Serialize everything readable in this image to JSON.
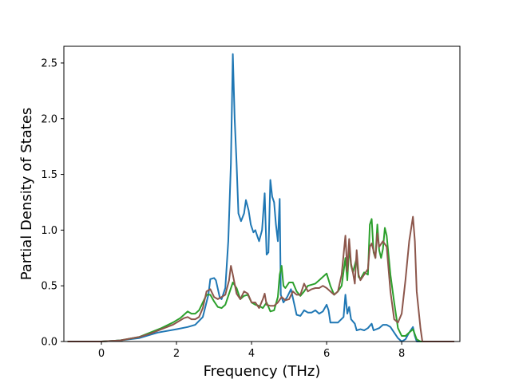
{
  "chart_data": {
    "type": "line",
    "title": "",
    "xlabel": "Frequency (THz)",
    "ylabel": "Partial Density of States",
    "xlim": [
      -1.0,
      9.55
    ],
    "ylim": [
      0.0,
      2.65
    ],
    "xticks": [
      0,
      2,
      4,
      6,
      8
    ],
    "xtick_labels": [
      "0",
      "2",
      "4",
      "6",
      "8"
    ],
    "yticks": [
      0.0,
      0.5,
      1.0,
      1.5,
      2.0,
      2.5
    ],
    "ytick_labels": [
      "0.0",
      "0.5",
      "1.0",
      "1.5",
      "2.0",
      "2.5"
    ],
    "grid": false,
    "legend": "none",
    "series": [
      {
        "color": "#1f77b4",
        "points": [
          [
            -0.9,
            0.0
          ],
          [
            0,
            0.0
          ],
          [
            0.5,
            0.01
          ],
          [
            1.0,
            0.03
          ],
          [
            1.5,
            0.08
          ],
          [
            2.0,
            0.11
          ],
          [
            2.3,
            0.13
          ],
          [
            2.5,
            0.15
          ],
          [
            2.7,
            0.22
          ],
          [
            2.85,
            0.42
          ],
          [
            2.9,
            0.56
          ],
          [
            3.0,
            0.57
          ],
          [
            3.05,
            0.55
          ],
          [
            3.15,
            0.4
          ],
          [
            3.2,
            0.38
          ],
          [
            3.3,
            0.48
          ],
          [
            3.38,
            0.9
          ],
          [
            3.45,
            1.6
          ],
          [
            3.5,
            2.58
          ],
          [
            3.55,
            2.0
          ],
          [
            3.6,
            1.6
          ],
          [
            3.65,
            1.15
          ],
          [
            3.72,
            1.08
          ],
          [
            3.8,
            1.15
          ],
          [
            3.85,
            1.27
          ],
          [
            3.92,
            1.18
          ],
          [
            3.98,
            1.05
          ],
          [
            4.05,
            0.98
          ],
          [
            4.1,
            1.0
          ],
          [
            4.15,
            0.95
          ],
          [
            4.2,
            0.9
          ],
          [
            4.28,
            1.0
          ],
          [
            4.35,
            1.33
          ],
          [
            4.4,
            0.78
          ],
          [
            4.45,
            0.8
          ],
          [
            4.5,
            1.45
          ],
          [
            4.55,
            1.3
          ],
          [
            4.6,
            1.25
          ],
          [
            4.65,
            1.05
          ],
          [
            4.7,
            0.9
          ],
          [
            4.75,
            1.28
          ],
          [
            4.78,
            0.42
          ],
          [
            4.85,
            0.35
          ],
          [
            4.95,
            0.4
          ],
          [
            5.05,
            0.47
          ],
          [
            5.2,
            0.24
          ],
          [
            5.3,
            0.23
          ],
          [
            5.4,
            0.28
          ],
          [
            5.5,
            0.26
          ],
          [
            5.6,
            0.26
          ],
          [
            5.7,
            0.28
          ],
          [
            5.8,
            0.25
          ],
          [
            5.9,
            0.27
          ],
          [
            6.0,
            0.33
          ],
          [
            6.05,
            0.28
          ],
          [
            6.1,
            0.17
          ],
          [
            6.3,
            0.17
          ],
          [
            6.45,
            0.22
          ],
          [
            6.5,
            0.42
          ],
          [
            6.55,
            0.25
          ],
          [
            6.6,
            0.31
          ],
          [
            6.65,
            0.2
          ],
          [
            6.75,
            0.16
          ],
          [
            6.8,
            0.1
          ],
          [
            6.9,
            0.11
          ],
          [
            7.0,
            0.1
          ],
          [
            7.1,
            0.12
          ],
          [
            7.2,
            0.16
          ],
          [
            7.25,
            0.1
          ],
          [
            7.4,
            0.12
          ],
          [
            7.5,
            0.15
          ],
          [
            7.6,
            0.15
          ],
          [
            7.7,
            0.13
          ],
          [
            7.8,
            0.08
          ],
          [
            7.9,
            0.03
          ],
          [
            8.0,
            0.0
          ],
          [
            8.1,
            0.02
          ],
          [
            8.2,
            0.08
          ],
          [
            8.3,
            0.13
          ],
          [
            8.35,
            0.05
          ],
          [
            8.4,
            0.0
          ],
          [
            9.4,
            0.0
          ]
        ]
      },
      {
        "color": "#2ca02c",
        "points": [
          [
            -0.9,
            0.0
          ],
          [
            0,
            0.0
          ],
          [
            0.5,
            0.01
          ],
          [
            1.0,
            0.04
          ],
          [
            1.3,
            0.08
          ],
          [
            1.6,
            0.12
          ],
          [
            1.9,
            0.17
          ],
          [
            2.1,
            0.21
          ],
          [
            2.2,
            0.24
          ],
          [
            2.3,
            0.27
          ],
          [
            2.4,
            0.25
          ],
          [
            2.5,
            0.25
          ],
          [
            2.6,
            0.28
          ],
          [
            2.7,
            0.35
          ],
          [
            2.8,
            0.42
          ],
          [
            2.9,
            0.42
          ],
          [
            3.0,
            0.36
          ],
          [
            3.1,
            0.31
          ],
          [
            3.2,
            0.3
          ],
          [
            3.3,
            0.33
          ],
          [
            3.4,
            0.43
          ],
          [
            3.5,
            0.53
          ],
          [
            3.6,
            0.48
          ],
          [
            3.7,
            0.38
          ],
          [
            3.8,
            0.41
          ],
          [
            3.9,
            0.42
          ],
          [
            4.0,
            0.35
          ],
          [
            4.1,
            0.33
          ],
          [
            4.2,
            0.32
          ],
          [
            4.3,
            0.3
          ],
          [
            4.4,
            0.35
          ],
          [
            4.5,
            0.27
          ],
          [
            4.6,
            0.28
          ],
          [
            4.7,
            0.4
          ],
          [
            4.75,
            0.6
          ],
          [
            4.8,
            0.68
          ],
          [
            4.85,
            0.5
          ],
          [
            4.9,
            0.48
          ],
          [
            5.0,
            0.53
          ],
          [
            5.1,
            0.53
          ],
          [
            5.2,
            0.45
          ],
          [
            5.3,
            0.41
          ],
          [
            5.4,
            0.45
          ],
          [
            5.5,
            0.5
          ],
          [
            5.6,
            0.51
          ],
          [
            5.7,
            0.52
          ],
          [
            5.8,
            0.55
          ],
          [
            5.9,
            0.58
          ],
          [
            6.0,
            0.61
          ],
          [
            6.1,
            0.5
          ],
          [
            6.2,
            0.42
          ],
          [
            6.3,
            0.45
          ],
          [
            6.4,
            0.5
          ],
          [
            6.5,
            0.75
          ],
          [
            6.55,
            0.55
          ],
          [
            6.6,
            0.85
          ],
          [
            6.65,
            0.68
          ],
          [
            6.7,
            0.62
          ],
          [
            6.8,
            0.75
          ],
          [
            6.85,
            0.58
          ],
          [
            6.9,
            0.56
          ],
          [
            7.0,
            0.62
          ],
          [
            7.1,
            0.6
          ],
          [
            7.15,
            1.05
          ],
          [
            7.2,
            1.1
          ],
          [
            7.25,
            0.8
          ],
          [
            7.3,
            0.75
          ],
          [
            7.35,
            1.05
          ],
          [
            7.4,
            0.82
          ],
          [
            7.45,
            0.75
          ],
          [
            7.5,
            0.83
          ],
          [
            7.55,
            1.02
          ],
          [
            7.6,
            0.95
          ],
          [
            7.7,
            0.6
          ],
          [
            7.8,
            0.35
          ],
          [
            7.9,
            0.12
          ],
          [
            8.0,
            0.05
          ],
          [
            8.1,
            0.05
          ],
          [
            8.2,
            0.08
          ],
          [
            8.3,
            0.11
          ],
          [
            8.4,
            0.02
          ],
          [
            8.5,
            0.0
          ],
          [
            9.4,
            0.0
          ]
        ]
      },
      {
        "color": "#8c564b",
        "points": [
          [
            -0.9,
            0.0
          ],
          [
            0,
            0.0
          ],
          [
            0.5,
            0.01
          ],
          [
            1.0,
            0.04
          ],
          [
            1.3,
            0.07
          ],
          [
            1.6,
            0.11
          ],
          [
            1.9,
            0.15
          ],
          [
            2.1,
            0.19
          ],
          [
            2.2,
            0.21
          ],
          [
            2.3,
            0.22
          ],
          [
            2.4,
            0.2
          ],
          [
            2.5,
            0.2
          ],
          [
            2.6,
            0.22
          ],
          [
            2.7,
            0.3
          ],
          [
            2.8,
            0.45
          ],
          [
            2.9,
            0.47
          ],
          [
            3.0,
            0.4
          ],
          [
            3.1,
            0.38
          ],
          [
            3.2,
            0.4
          ],
          [
            3.3,
            0.42
          ],
          [
            3.4,
            0.55
          ],
          [
            3.45,
            0.68
          ],
          [
            3.5,
            0.6
          ],
          [
            3.6,
            0.43
          ],
          [
            3.7,
            0.38
          ],
          [
            3.8,
            0.45
          ],
          [
            3.9,
            0.43
          ],
          [
            4.0,
            0.35
          ],
          [
            4.1,
            0.35
          ],
          [
            4.2,
            0.3
          ],
          [
            4.3,
            0.38
          ],
          [
            4.35,
            0.43
          ],
          [
            4.4,
            0.33
          ],
          [
            4.5,
            0.32
          ],
          [
            4.6,
            0.32
          ],
          [
            4.7,
            0.35
          ],
          [
            4.8,
            0.4
          ],
          [
            4.9,
            0.37
          ],
          [
            5.0,
            0.38
          ],
          [
            5.1,
            0.45
          ],
          [
            5.2,
            0.42
          ],
          [
            5.3,
            0.42
          ],
          [
            5.4,
            0.52
          ],
          [
            5.5,
            0.45
          ],
          [
            5.6,
            0.47
          ],
          [
            5.7,
            0.48
          ],
          [
            5.8,
            0.48
          ],
          [
            5.9,
            0.5
          ],
          [
            6.0,
            0.48
          ],
          [
            6.1,
            0.45
          ],
          [
            6.2,
            0.42
          ],
          [
            6.3,
            0.45
          ],
          [
            6.4,
            0.6
          ],
          [
            6.5,
            0.95
          ],
          [
            6.55,
            0.63
          ],
          [
            6.6,
            0.92
          ],
          [
            6.65,
            0.7
          ],
          [
            6.7,
            0.62
          ],
          [
            6.75,
            0.52
          ],
          [
            6.8,
            0.82
          ],
          [
            6.85,
            0.6
          ],
          [
            6.9,
            0.55
          ],
          [
            7.0,
            0.6
          ],
          [
            7.1,
            0.65
          ],
          [
            7.15,
            0.85
          ],
          [
            7.2,
            0.88
          ],
          [
            7.3,
            0.75
          ],
          [
            7.35,
            0.97
          ],
          [
            7.4,
            0.85
          ],
          [
            7.5,
            0.9
          ],
          [
            7.6,
            0.85
          ],
          [
            7.7,
            0.45
          ],
          [
            7.8,
            0.2
          ],
          [
            7.9,
            0.17
          ],
          [
            8.0,
            0.25
          ],
          [
            8.1,
            0.55
          ],
          [
            8.2,
            0.9
          ],
          [
            8.3,
            1.12
          ],
          [
            8.35,
            0.9
          ],
          [
            8.4,
            0.45
          ],
          [
            8.5,
            0.12
          ],
          [
            8.55,
            0.0
          ],
          [
            9.4,
            0.0
          ]
        ]
      }
    ]
  }
}
